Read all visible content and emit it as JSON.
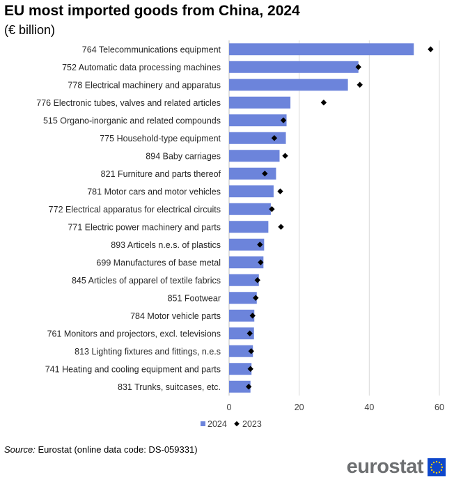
{
  "title": "EU most imported goods from China, 2024",
  "subtitle": "(€ billion)",
  "source": {
    "label": "Source:",
    "text": "Eurostat (online data code: DS-059331)"
  },
  "logo": {
    "text": "eurostat",
    "icon": "eu-flag-icon"
  },
  "colors": {
    "bar": "#6c84db",
    "marker": "#000000",
    "grid": "#d9d9d9",
    "axis": "#bfbfbf"
  },
  "chart_data": {
    "type": "bar",
    "orientation": "horizontal",
    "title": "EU most imported goods from China, 2024",
    "subtitle": "(€ billion)",
    "categories": [
      "764 Telecommunications equipment",
      "752 Automatic data processing machines",
      "778 Electrical machinery and apparatus",
      "776 Electronic tubes, valves and related articles",
      "515 Organo-inorganic and related compounds",
      "775 Household-type equipment",
      "894 Baby carriages",
      "821 Furniture and parts thereof",
      "781 Motor cars and motor vehicles",
      "772 Electrical apparatus for electrical circuits",
      "771 Electric power machinery and parts",
      "893 Articels n.e.s. of plastics",
      "699 Manufactures of base metal",
      "845 Articles of apparel of textile fabrics",
      "851 Footwear",
      "784 Motor vehicle parts",
      "761 Monitors and projectors, excl. televisions",
      "813 Lighting fixtures and fittings, n.e.s",
      "741 Heating and cooling equipment and parts",
      "831 Trunks, suitcases, etc."
    ],
    "series": [
      {
        "name": "2024",
        "type": "bar",
        "values": [
          52.7,
          36.9,
          33.9,
          17.5,
          16.4,
          16.2,
          14.4,
          13.4,
          12.7,
          11.9,
          11.2,
          10.0,
          9.8,
          8.5,
          7.9,
          7.2,
          7.1,
          6.8,
          6.4,
          6.1
        ]
      },
      {
        "name": "2023",
        "type": "marker",
        "values": [
          57.5,
          36.9,
          37.3,
          27.0,
          15.5,
          12.9,
          16.0,
          10.2,
          14.6,
          12.2,
          14.8,
          8.8,
          9.0,
          8.1,
          7.6,
          6.7,
          5.9,
          6.3,
          6.1,
          5.6
        ]
      }
    ],
    "xlim": [
      0,
      60
    ],
    "xticks": [
      0,
      20,
      40,
      60
    ],
    "grid": true,
    "legend": "bottom"
  }
}
